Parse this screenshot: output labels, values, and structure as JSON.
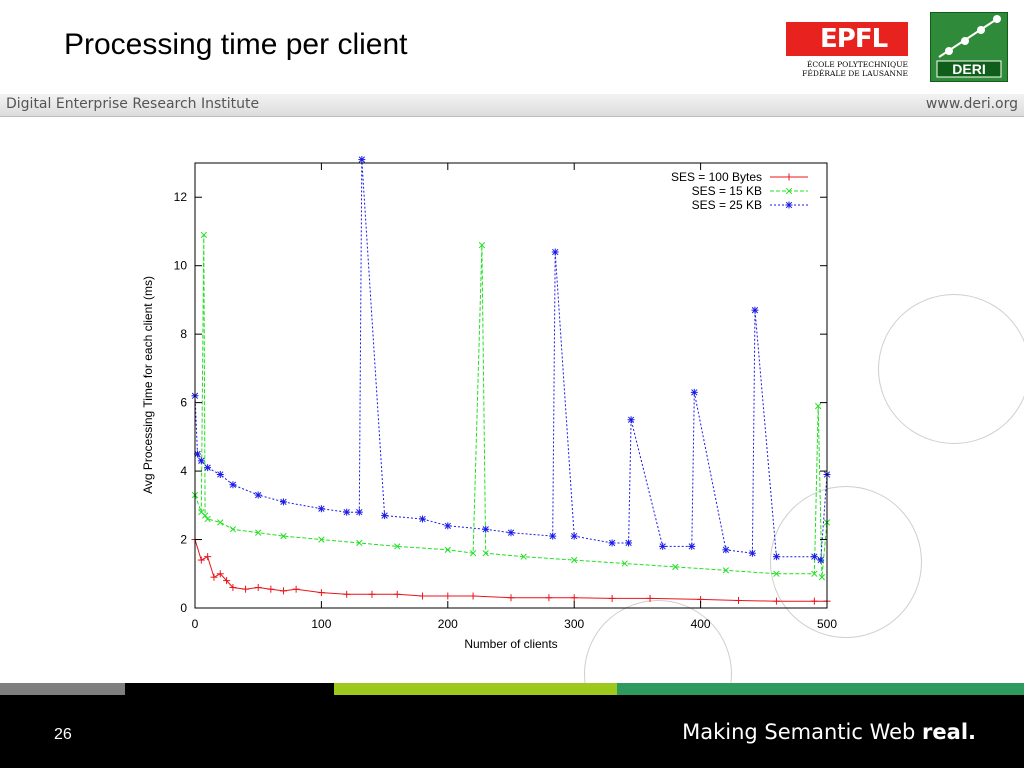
{
  "slide": {
    "title": "Processing time per client",
    "band_left": "Digital Enterprise Research Institute",
    "band_right": "www.deri.org",
    "page_number": "26",
    "tagline_prefix": "Making Semantic Web ",
    "tagline_bold": "real.",
    "epfl_logo_text": "EPFL",
    "epfl_sub_1": "ÉCOLE POLYTECHNIQUE",
    "epfl_sub_2": "FÉDÉRALE DE LAUSANNE",
    "deri_logo_text": "DERI"
  },
  "colors": {
    "ses100": "#e8151b",
    "ses15": "#22e022",
    "ses25": "#1a1ae8",
    "stripe_gray": "#7f7f7f",
    "stripe_black": "#000000",
    "stripe_lime": "#9dc81e",
    "stripe_green": "#2e9a5e"
  },
  "chart_data": {
    "type": "line",
    "xlabel": "Number of clients",
    "ylabel": "Avg Processing Time for each client (ms)",
    "xlim": [
      0,
      500
    ],
    "ylim": [
      0,
      13
    ],
    "xticks": [
      0,
      100,
      200,
      300,
      400,
      500
    ],
    "yticks": [
      0,
      2,
      4,
      6,
      8,
      10,
      12
    ],
    "grid": false,
    "legend_position": "top-right",
    "series": [
      {
        "name": "SES = 100 Bytes",
        "marker": "plus",
        "line": "solid",
        "color": "#e8151b",
        "x": [
          0,
          5,
          10,
          15,
          20,
          25,
          30,
          40,
          50,
          60,
          70,
          80,
          100,
          120,
          140,
          160,
          180,
          200,
          220,
          250,
          280,
          300,
          330,
          360,
          400,
          430,
          460,
          490,
          500
        ],
        "y": [
          2.0,
          1.4,
          1.5,
          0.9,
          1.0,
          0.8,
          0.6,
          0.55,
          0.6,
          0.55,
          0.5,
          0.55,
          0.45,
          0.4,
          0.4,
          0.4,
          0.35,
          0.35,
          0.35,
          0.3,
          0.3,
          0.3,
          0.28,
          0.28,
          0.25,
          0.22,
          0.2,
          0.2,
          0.2
        ]
      },
      {
        "name": "SES = 15 KB",
        "marker": "x",
        "line": "dashed",
        "color": "#22e022",
        "x": [
          0,
          5,
          7,
          8,
          10,
          20,
          30,
          50,
          70,
          100,
          130,
          160,
          200,
          220,
          227,
          230,
          260,
          300,
          340,
          380,
          420,
          460,
          490,
          493,
          496,
          500
        ],
        "y": [
          3.3,
          2.8,
          10.9,
          2.7,
          2.6,
          2.5,
          2.3,
          2.2,
          2.1,
          2.0,
          1.9,
          1.8,
          1.7,
          1.6,
          10.6,
          1.6,
          1.5,
          1.4,
          1.3,
          1.2,
          1.1,
          1.0,
          1.0,
          5.9,
          0.9,
          2.5
        ]
      },
      {
        "name": "SES = 25 KB",
        "marker": "star",
        "line": "dotted",
        "color": "#1a1ae8",
        "x": [
          0,
          2,
          5,
          10,
          20,
          30,
          50,
          70,
          100,
          120,
          130,
          132,
          150,
          180,
          200,
          230,
          250,
          283,
          285,
          300,
          330,
          343,
          345,
          370,
          393,
          395,
          420,
          441,
          443,
          460,
          490,
          495,
          500
        ],
        "y": [
          6.2,
          4.5,
          4.3,
          4.1,
          3.9,
          3.6,
          3.3,
          3.1,
          2.9,
          2.8,
          2.8,
          13.1,
          2.7,
          2.6,
          2.4,
          2.3,
          2.2,
          2.1,
          10.4,
          2.1,
          1.9,
          1.9,
          5.5,
          1.8,
          1.8,
          6.3,
          1.7,
          1.6,
          8.7,
          1.5,
          1.5,
          1.4,
          3.9
        ]
      }
    ]
  }
}
